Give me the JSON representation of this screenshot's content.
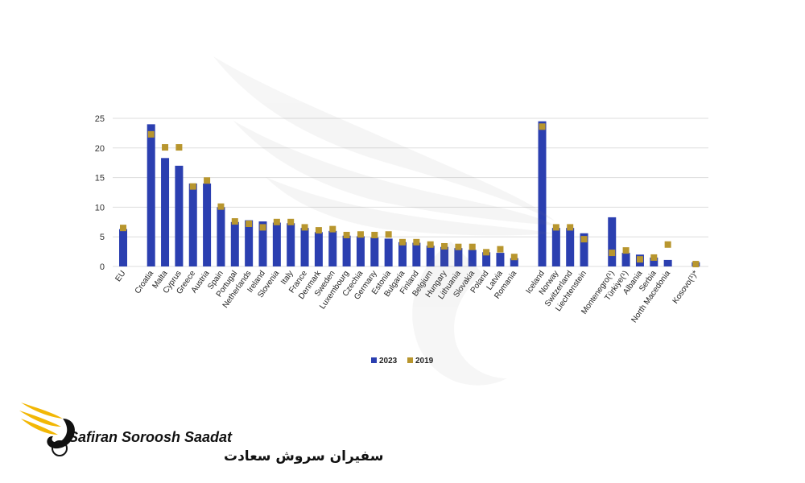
{
  "brand": {
    "latin_name": "Safiran Soroosh Saadat",
    "persian_name": "سفیران سروش سعادت",
    "wing_color": "#f2b705",
    "text_color": "#111111"
  },
  "chart_data": {
    "type": "bar",
    "categories": [
      "EU",
      "",
      "Croatia",
      "Malta",
      "Cyprus",
      "Greece",
      "Austria",
      "Spain",
      "Portugal",
      "Netherlands",
      "Ireland",
      "Slovenia",
      "Italy",
      "France",
      "Denmark",
      "Sweden",
      "Luxembourg",
      "Czechia",
      "Germany",
      "Estonia",
      "Bulgaria",
      "Finland",
      "Belgium",
      "Hungary",
      "Lithuania",
      "Slovakia",
      "Poland",
      "Latvia",
      "Romania",
      "",
      "Iceland",
      "Norway",
      "Switzerland",
      "Liechtenstein",
      "",
      "Montenegro(¹)",
      "Türkiye(¹)",
      "Albania",
      "Serbia",
      "North Macedonia",
      "",
      "Kosovo(¹)*"
    ],
    "series": [
      {
        "name": "2023",
        "type": "bar",
        "color": "#2b3fb0",
        "values": [
          6.3,
          null,
          24.0,
          18.3,
          17.0,
          14.0,
          14.0,
          10.0,
          7.5,
          7.8,
          7.6,
          7.4,
          7.3,
          6.5,
          5.8,
          6.0,
          5.2,
          5.1,
          4.9,
          4.7,
          4.1,
          4.0,
          3.5,
          3.3,
          3.1,
          2.8,
          2.4,
          2.3,
          1.4,
          null,
          24.5,
          6.5,
          6.5,
          5.6,
          null,
          8.3,
          2.3,
          2.0,
          1.5,
          1.1,
          null,
          0.7
        ]
      },
      {
        "name": "2019",
        "type": "marker",
        "color": "#b8962e",
        "values": [
          6.5,
          null,
          22.3,
          20.1,
          20.1,
          13.5,
          14.5,
          10.1,
          7.6,
          7.2,
          6.6,
          7.5,
          7.5,
          6.6,
          6.1,
          6.3,
          5.3,
          5.4,
          5.3,
          5.4,
          4.1,
          4.1,
          3.7,
          3.4,
          3.3,
          3.3,
          2.4,
          2.9,
          1.6,
          null,
          23.6,
          6.6,
          6.6,
          4.6,
          null,
          2.3,
          2.7,
          1.2,
          1.5,
          3.7,
          null,
          0.4
        ]
      }
    ],
    "yticks": [
      0,
      5,
      10,
      15,
      20,
      25
    ],
    "ylim": [
      0,
      25
    ],
    "grid": true,
    "legend": "bottom-center",
    "title": "",
    "xlabel": "",
    "ylabel": ""
  }
}
